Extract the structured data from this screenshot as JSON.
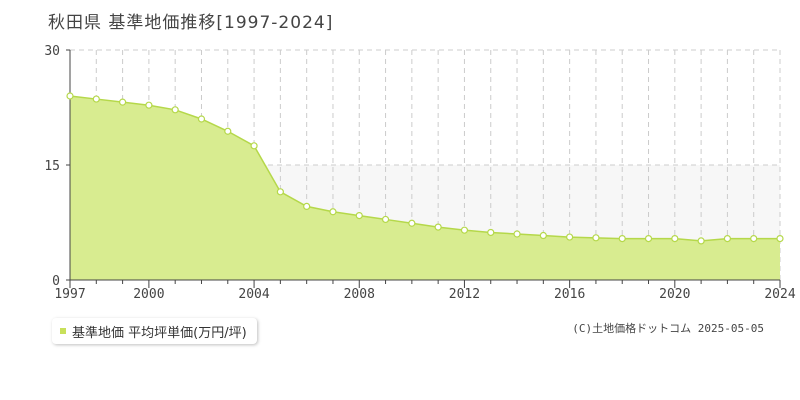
{
  "title": "秋田県  基準地価推移[1997-2024]",
  "legend": {
    "label": "基準地価 平均坪単価(万円/坪)",
    "color": "#c8e05a"
  },
  "copyright": "(C)土地価格ドットコム 2025-05-05",
  "colors": {
    "line": "#b5d84a",
    "fill": "#d8ec90",
    "band": "#f7f7f7",
    "grid": "#cccccc",
    "axis": "#444444"
  },
  "chart_data": {
    "type": "area",
    "x": [
      1997,
      1998,
      1999,
      2000,
      2001,
      2002,
      2003,
      2004,
      2005,
      2006,
      2007,
      2008,
      2009,
      2010,
      2011,
      2012,
      2013,
      2014,
      2015,
      2016,
      2017,
      2018,
      2019,
      2020,
      2021,
      2022,
      2023,
      2024
    ],
    "values": [
      24.0,
      23.6,
      23.2,
      22.8,
      22.2,
      21.0,
      19.4,
      17.5,
      11.5,
      9.6,
      8.9,
      8.4,
      7.9,
      7.4,
      6.9,
      6.5,
      6.2,
      6.0,
      5.8,
      5.6,
      5.5,
      5.4,
      5.4,
      5.4,
      5.1,
      5.4,
      5.4,
      5.4
    ],
    "xlim": [
      1997,
      2024
    ],
    "ylim": [
      0,
      30
    ],
    "yticks": [
      0,
      15,
      30
    ],
    "xticks": [
      1997,
      2000,
      2004,
      2008,
      2012,
      2016,
      2020,
      2024
    ],
    "grid": true,
    "legend_position": "bottom-left"
  }
}
